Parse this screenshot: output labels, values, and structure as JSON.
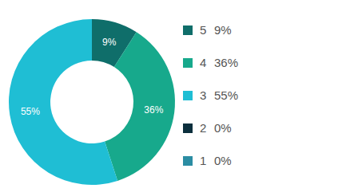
{
  "chart_data": {
    "type": "pie",
    "categories": [
      "5",
      "4",
      "3",
      "2",
      "1"
    ],
    "values": [
      9,
      36,
      55,
      0,
      0
    ],
    "value_labels": [
      "9%",
      "36%",
      "55%",
      "0%",
      "0%"
    ],
    "colors": [
      "#0f6e6a",
      "#17a98c",
      "#1fbed4",
      "#0b2f3d",
      "#2b8da3"
    ],
    "data_labels": true,
    "legend": "right"
  }
}
